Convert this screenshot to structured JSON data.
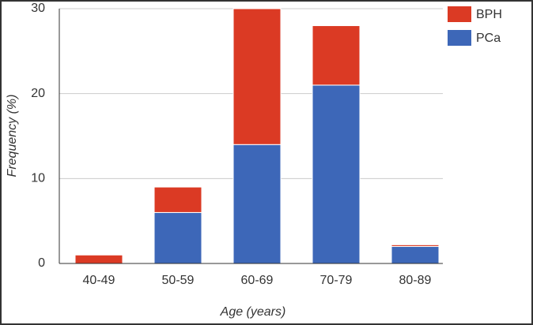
{
  "chart_data": {
    "type": "bar",
    "stacked": true,
    "x_label": "Age (years)",
    "y_label": "Frequency (%)",
    "categories": [
      "40-49",
      "50-59",
      "60-69",
      "70-79",
      "80-89"
    ],
    "series": [
      {
        "name": "PCa",
        "color": "#3d67b8",
        "values": [
          0,
          6,
          14,
          21,
          2
        ]
      },
      {
        "name": "BPH",
        "color": "#db3a24",
        "values": [
          1,
          3,
          16,
          7,
          0.2
        ]
      }
    ],
    "ylim": [
      0,
      30
    ],
    "yticks": [
      0,
      10,
      20,
      30
    ],
    "grid": true,
    "legend": "top-right"
  }
}
